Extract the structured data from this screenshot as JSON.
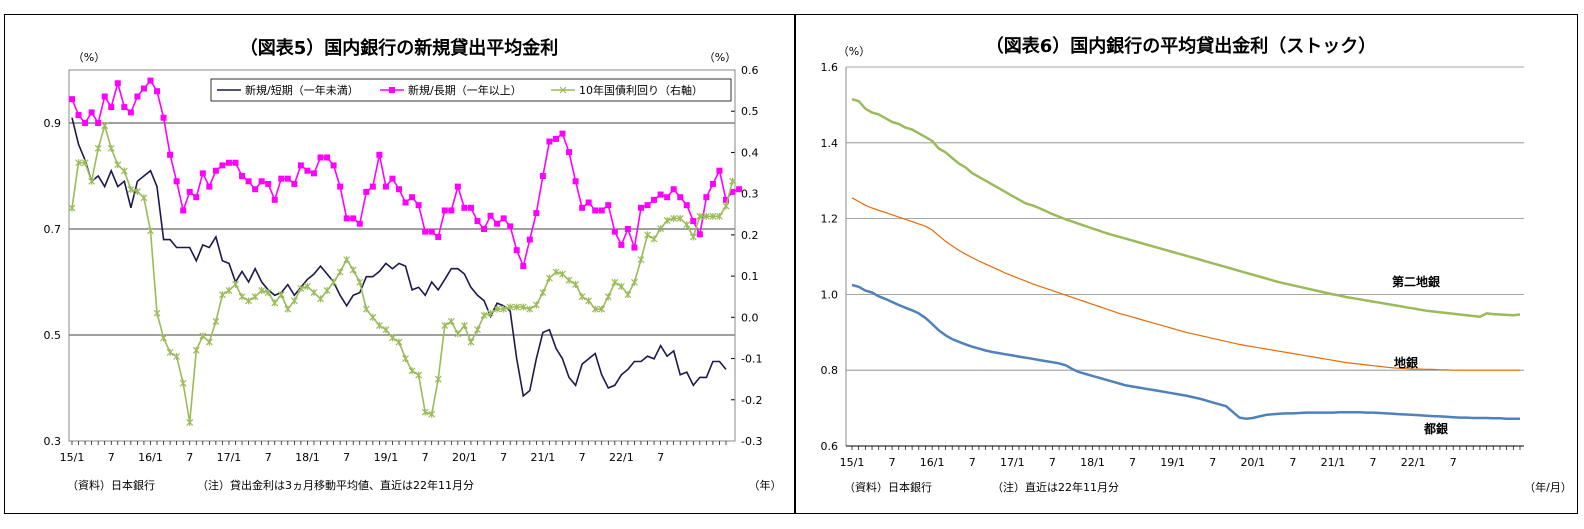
{
  "chart_data": [
    {
      "type": "line",
      "title": "（図表5）国内銀行の新規貸出平均金利",
      "left_unit": "（%）",
      "right_unit": "（%）",
      "xlabel": "（年）",
      "source_note": "（資料）日本銀行",
      "note": "（注）貸出金利は3ヵ月移動平均値、直近は22年11月分",
      "x_tick_labels": [
        "15/1",
        "7",
        "16/1",
        "7",
        "17/1",
        "7",
        "18/1",
        "7",
        "19/1",
        "7",
        "20/1",
        "7",
        "21/1",
        "7",
        "22/1",
        "7"
      ],
      "y_left": {
        "min": 0.3,
        "max": 1.0,
        "ticks": [
          "0.3",
          "0.5",
          "0.7",
          "0.9"
        ]
      },
      "y_right": {
        "min": -0.3,
        "max": 0.6,
        "ticks": [
          "-0.3",
          "-0.2",
          "-0.1",
          "0.0",
          "0.1",
          "0.2",
          "0.3",
          "0.4",
          "0.5",
          "0.6"
        ]
      },
      "legend_position": "top-right",
      "series": [
        {
          "name": "新規/短期（一年未満）",
          "axis": "left",
          "color": "#1a1a4e",
          "marker": "none",
          "values": [
            0.91,
            0.86,
            0.83,
            0.79,
            0.8,
            0.78,
            0.81,
            0.78,
            0.79,
            0.74,
            0.79,
            0.8,
            0.81,
            0.78,
            0.68,
            0.68,
            0.665,
            0.665,
            0.665,
            0.64,
            0.67,
            0.665,
            0.685,
            0.64,
            0.635,
            0.6,
            0.62,
            0.6,
            0.625,
            0.6,
            0.585,
            0.575,
            0.58,
            0.595,
            0.575,
            0.59,
            0.605,
            0.615,
            0.63,
            0.615,
            0.6,
            0.575,
            0.555,
            0.575,
            0.58,
            0.61,
            0.61,
            0.62,
            0.635,
            0.625,
            0.635,
            0.63,
            0.585,
            0.59,
            0.575,
            0.6,
            0.585,
            0.605,
            0.625,
            0.625,
            0.615,
            0.59,
            0.575,
            0.565,
            0.535,
            0.56,
            0.555,
            0.545,
            0.455,
            0.385,
            0.395,
            0.455,
            0.505,
            0.51,
            0.475,
            0.455,
            0.42,
            0.405,
            0.445,
            0.455,
            0.465,
            0.425,
            0.4,
            0.405,
            0.425,
            0.435,
            0.45,
            0.45,
            0.46,
            0.455,
            0.48,
            0.46,
            0.47,
            0.425,
            0.43,
            0.405,
            0.42,
            0.42,
            0.45,
            0.45,
            0.435
          ]
        },
        {
          "name": "新規/長期（一年以上）",
          "axis": "left",
          "color": "#ff00ff",
          "marker": "square",
          "values": [
            0.945,
            0.915,
            0.9,
            0.92,
            0.9,
            0.95,
            0.93,
            0.975,
            0.93,
            0.92,
            0.95,
            0.965,
            0.98,
            0.96,
            0.91,
            0.84,
            0.79,
            0.735,
            0.77,
            0.76,
            0.805,
            0.78,
            0.81,
            0.82,
            0.825,
            0.825,
            0.8,
            0.79,
            0.775,
            0.79,
            0.785,
            0.755,
            0.795,
            0.795,
            0.785,
            0.82,
            0.81,
            0.805,
            0.835,
            0.835,
            0.82,
            0.78,
            0.72,
            0.72,
            0.71,
            0.77,
            0.78,
            0.84,
            0.78,
            0.795,
            0.775,
            0.75,
            0.76,
            0.745,
            0.695,
            0.695,
            0.685,
            0.735,
            0.735,
            0.78,
            0.74,
            0.74,
            0.715,
            0.7,
            0.725,
            0.71,
            0.72,
            0.705,
            0.66,
            0.63,
            0.68,
            0.73,
            0.8,
            0.865,
            0.87,
            0.88,
            0.845,
            0.79,
            0.74,
            0.75,
            0.735,
            0.735,
            0.745,
            0.695,
            0.67,
            0.7,
            0.665,
            0.74,
            0.745,
            0.755,
            0.765,
            0.76,
            0.775,
            0.76,
            0.745,
            0.715,
            0.69,
            0.76,
            0.785,
            0.81,
            0.755,
            0.77,
            0.775
          ]
        },
        {
          "name": "10年国債利回り（右軸）",
          "axis": "right",
          "color": "#9bbb59",
          "marker": "cross",
          "values": [
            0.265,
            0.375,
            0.375,
            0.33,
            0.41,
            0.465,
            0.41,
            0.37,
            0.355,
            0.31,
            0.305,
            0.29,
            0.21,
            0.01,
            -0.05,
            -0.085,
            -0.095,
            -0.16,
            -0.255,
            -0.08,
            -0.045,
            -0.06,
            -0.01,
            0.055,
            0.065,
            0.08,
            0.05,
            0.04,
            0.05,
            0.065,
            0.06,
            0.035,
            0.055,
            0.02,
            0.04,
            0.07,
            0.075,
            0.06,
            0.045,
            0.065,
            0.085,
            0.11,
            0.14,
            0.115,
            0.085,
            0.02,
            0.0,
            -0.02,
            -0.03,
            -0.05,
            -0.06,
            -0.1,
            -0.13,
            -0.14,
            -0.23,
            -0.235,
            -0.15,
            -0.02,
            -0.01,
            -0.04,
            -0.02,
            -0.06,
            -0.03,
            0.005,
            0.01,
            0.02,
            0.02,
            0.025,
            0.025,
            0.025,
            0.02,
            0.03,
            0.06,
            0.095,
            0.11,
            0.105,
            0.09,
            0.08,
            0.05,
            0.04,
            0.02,
            0.02,
            0.05,
            0.085,
            0.075,
            0.055,
            0.085,
            0.14,
            0.2,
            0.19,
            0.215,
            0.235,
            0.24,
            0.24,
            0.225,
            0.195,
            0.245,
            0.245,
            0.245,
            0.245,
            0.27,
            0.33
          ]
        }
      ]
    },
    {
      "type": "line",
      "title": "（図表6）国内銀行の平均貸出金利（ストック）",
      "left_unit": "（%）",
      "xlabel": "（年/月）",
      "source_note": "（資料）日本銀行",
      "note": "（注）直近は22年11月分",
      "x_tick_labels": [
        "15/1",
        "7",
        "16/1",
        "7",
        "17/1",
        "7",
        "18/1",
        "7",
        "19/1",
        "7",
        "20/1",
        "7",
        "21/1",
        "7",
        "22/1",
        "7"
      ],
      "y_left": {
        "min": 0.6,
        "max": 1.6,
        "ticks": [
          "0.6",
          "0.8",
          "1.0",
          "1.2",
          "1.4",
          "1.6"
        ]
      },
      "series": [
        {
          "name": "第二地銀",
          "label": "第二地銀",
          "color": "#9bbb59",
          "width": 2.5,
          "values": [
            1.515,
            1.51,
            1.49,
            1.48,
            1.475,
            1.465,
            1.455,
            1.45,
            1.44,
            1.435,
            1.425,
            1.415,
            1.405,
            1.385,
            1.375,
            1.36,
            1.345,
            1.335,
            1.32,
            1.31,
            1.3,
            1.29,
            1.28,
            1.27,
            1.26,
            1.25,
            1.24,
            1.235,
            1.228,
            1.22,
            1.212,
            1.205,
            1.198,
            1.192,
            1.186,
            1.18,
            1.174,
            1.168,
            1.162,
            1.157,
            1.152,
            1.147,
            1.142,
            1.137,
            1.132,
            1.127,
            1.122,
            1.117,
            1.112,
            1.107,
            1.102,
            1.097,
            1.092,
            1.087,
            1.082,
            1.077,
            1.072,
            1.067,
            1.062,
            1.057,
            1.052,
            1.047,
            1.042,
            1.037,
            1.032,
            1.028,
            1.024,
            1.02,
            1.016,
            1.012,
            1.008,
            1.004,
            1.0,
            0.997,
            0.993,
            0.99,
            0.987,
            0.984,
            0.981,
            0.978,
            0.975,
            0.972,
            0.969,
            0.966,
            0.963,
            0.96,
            0.957,
            0.955,
            0.953,
            0.951,
            0.949,
            0.947,
            0.945,
            0.943,
            0.941,
            0.95,
            0.948,
            0.947,
            0.946,
            0.945,
            0.947
          ]
        },
        {
          "name": "地銀",
          "label": "地銀",
          "color": "#e46c0a",
          "width": 1.2,
          "values": [
            1.255,
            1.245,
            1.235,
            1.228,
            1.222,
            1.216,
            1.21,
            1.204,
            1.198,
            1.192,
            1.186,
            1.18,
            1.17,
            1.155,
            1.14,
            1.128,
            1.116,
            1.106,
            1.097,
            1.088,
            1.08,
            1.072,
            1.064,
            1.056,
            1.049,
            1.042,
            1.035,
            1.028,
            1.022,
            1.016,
            1.01,
            1.004,
            0.998,
            0.992,
            0.986,
            0.98,
            0.974,
            0.968,
            0.962,
            0.956,
            0.95,
            0.945,
            0.94,
            0.935,
            0.93,
            0.925,
            0.92,
            0.915,
            0.91,
            0.905,
            0.9,
            0.896,
            0.892,
            0.888,
            0.884,
            0.88,
            0.876,
            0.872,
            0.868,
            0.865,
            0.862,
            0.859,
            0.856,
            0.853,
            0.85,
            0.847,
            0.844,
            0.841,
            0.838,
            0.835,
            0.832,
            0.829,
            0.826,
            0.823,
            0.82,
            0.818,
            0.816,
            0.814,
            0.812,
            0.81,
            0.808,
            0.806,
            0.805,
            0.804,
            0.803,
            0.803,
            0.802,
            0.802,
            0.801,
            0.801,
            0.8,
            0.8,
            0.8,
            0.8,
            0.8,
            0.8,
            0.8,
            0.8,
            0.8,
            0.8,
            0.8
          ]
        },
        {
          "name": "都銀",
          "label": "都銀",
          "color": "#4f81bd",
          "width": 2.5,
          "values": [
            1.025,
            1.02,
            1.01,
            1.005,
            0.995,
            0.988,
            0.98,
            0.972,
            0.965,
            0.958,
            0.95,
            0.938,
            0.922,
            0.905,
            0.892,
            0.882,
            0.875,
            0.868,
            0.862,
            0.857,
            0.852,
            0.848,
            0.845,
            0.842,
            0.839,
            0.836,
            0.833,
            0.83,
            0.827,
            0.824,
            0.821,
            0.818,
            0.813,
            0.803,
            0.795,
            0.79,
            0.785,
            0.78,
            0.775,
            0.77,
            0.765,
            0.76,
            0.757,
            0.754,
            0.751,
            0.748,
            0.745,
            0.742,
            0.739,
            0.736,
            0.733,
            0.729,
            0.725,
            0.72,
            0.715,
            0.71,
            0.705,
            0.69,
            0.675,
            0.672,
            0.674,
            0.678,
            0.682,
            0.684,
            0.685,
            0.686,
            0.686,
            0.687,
            0.688,
            0.688,
            0.688,
            0.688,
            0.688,
            0.689,
            0.689,
            0.689,
            0.689,
            0.688,
            0.688,
            0.687,
            0.686,
            0.685,
            0.684,
            0.683,
            0.682,
            0.681,
            0.68,
            0.679,
            0.678,
            0.677,
            0.676,
            0.675,
            0.675,
            0.674,
            0.674,
            0.674,
            0.673,
            0.673,
            0.672,
            0.672,
            0.672
          ]
        }
      ]
    }
  ]
}
